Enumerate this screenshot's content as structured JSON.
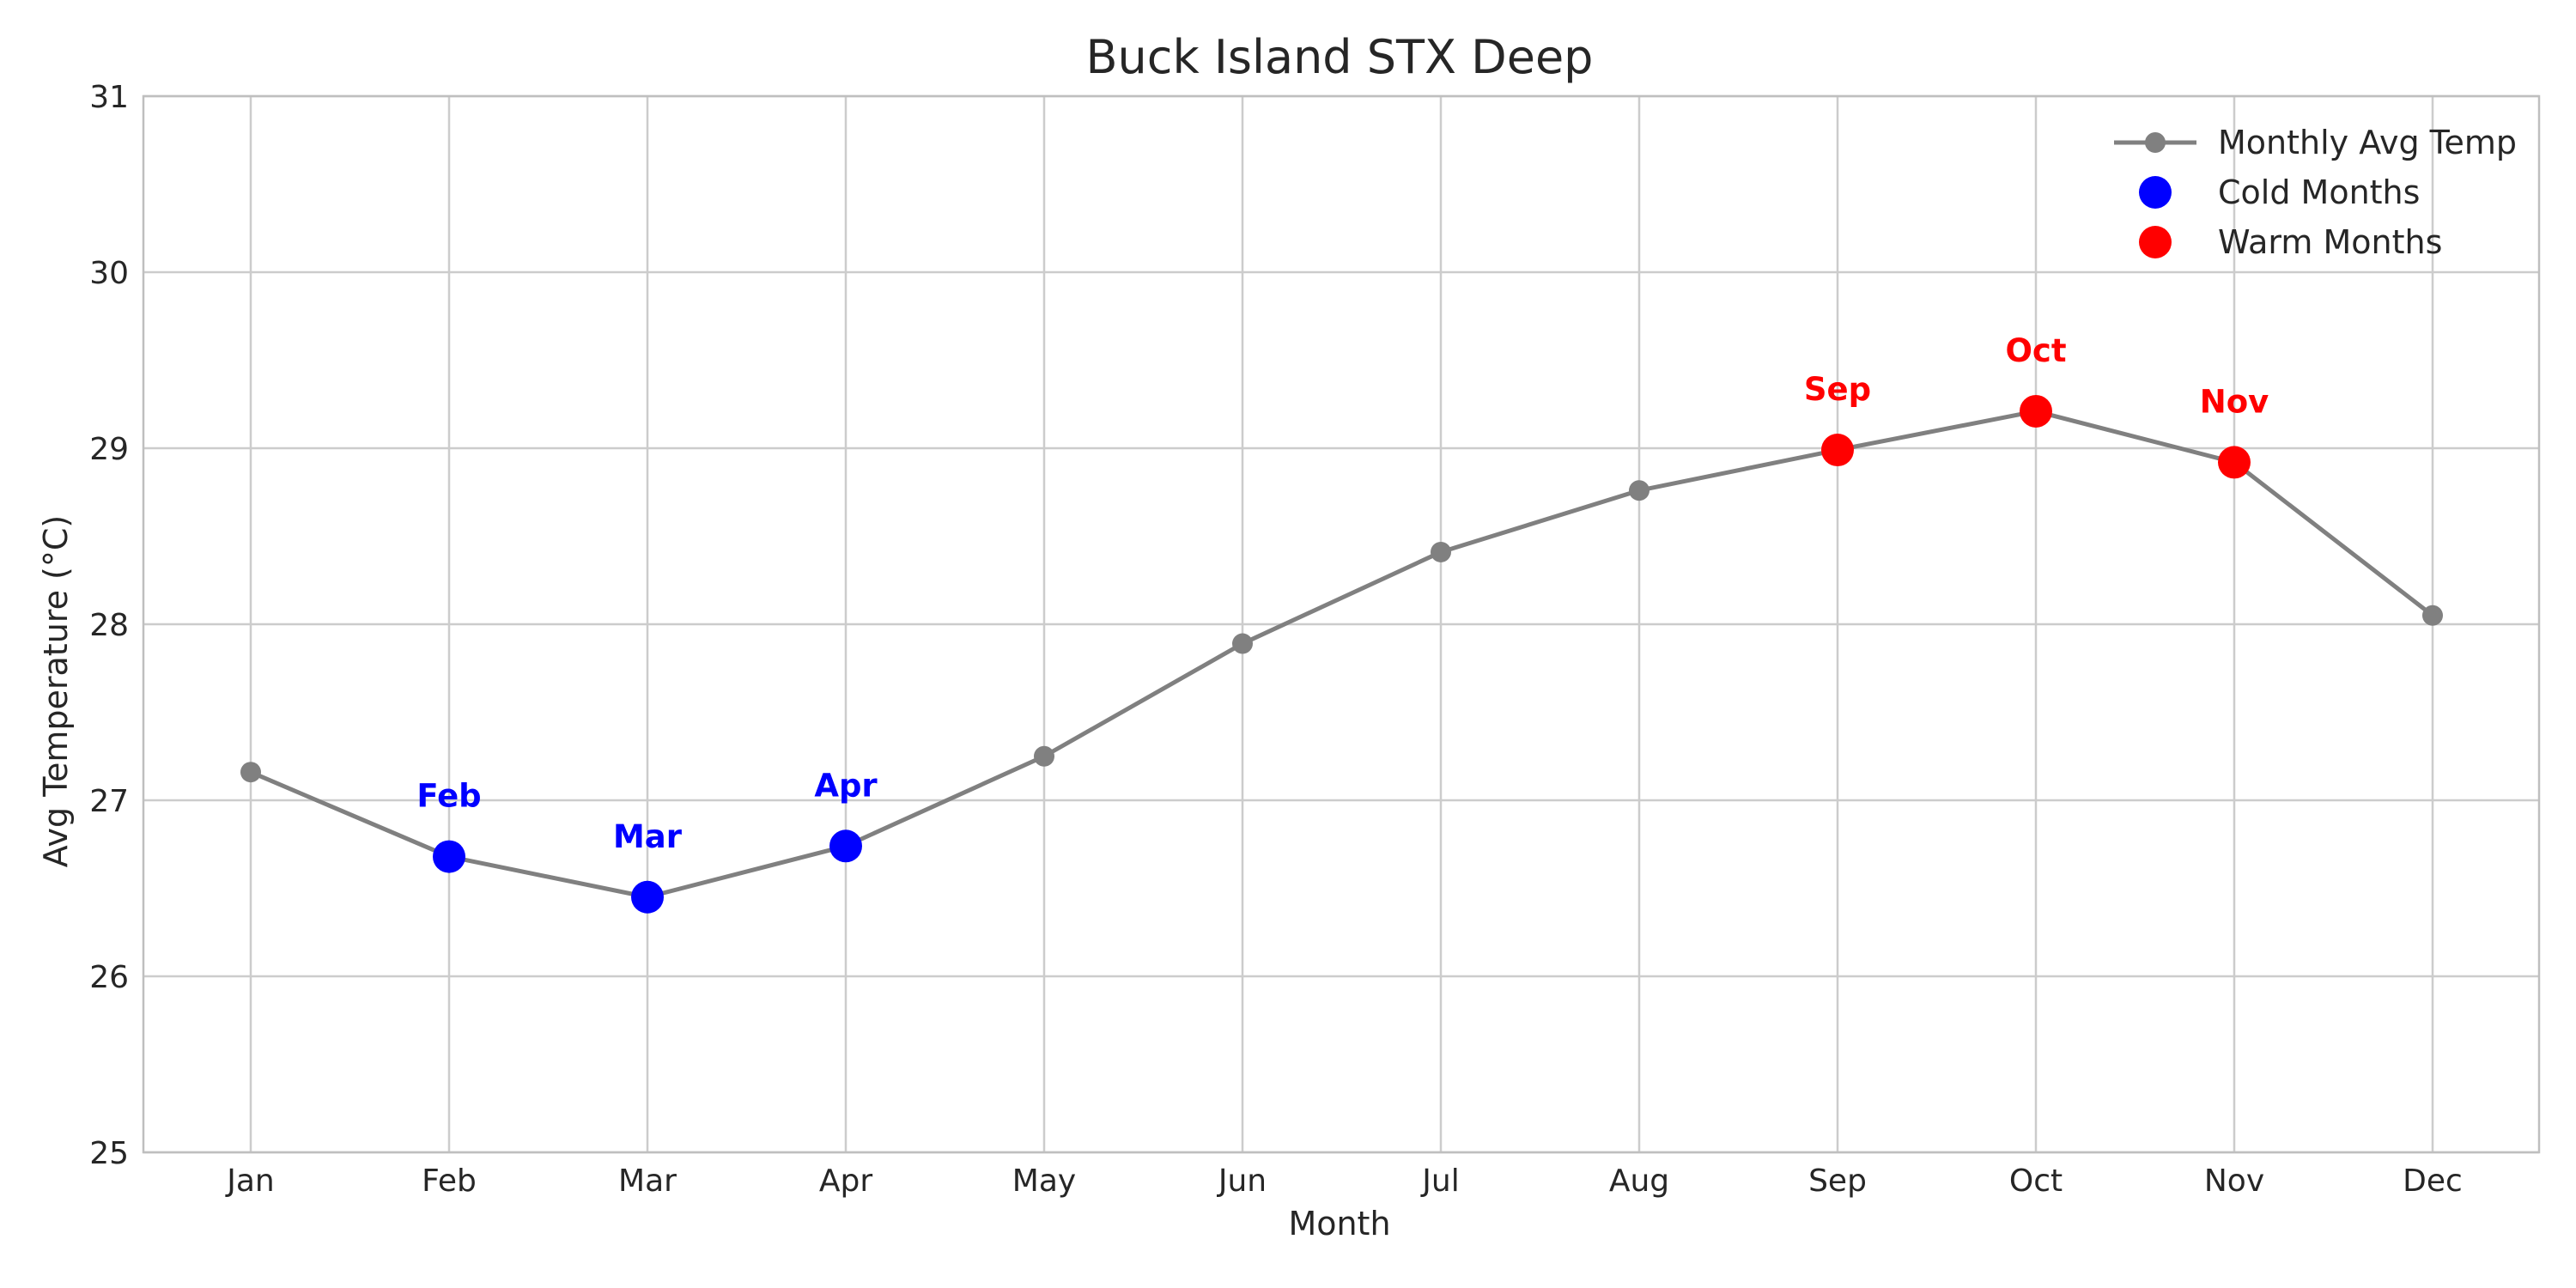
{
  "chart_data": {
    "type": "line",
    "title": "Buck Island STX Deep",
    "xlabel": "Month",
    "ylabel": "Avg Temperature (°C)",
    "ylim": [
      25,
      31
    ],
    "y_ticks": [
      "25",
      "26",
      "27",
      "28",
      "29",
      "30",
      "31"
    ],
    "categories": [
      "Jan",
      "Feb",
      "Mar",
      "Apr",
      "May",
      "Jun",
      "Jul",
      "Aug",
      "Sep",
      "Oct",
      "Nov",
      "Dec"
    ],
    "grid": true,
    "legend_position": "top-right",
    "series": [
      {
        "name": "Monthly Avg Temp",
        "color": "#808080",
        "values": [
          27.16,
          26.68,
          26.45,
          26.74,
          27.25,
          27.89,
          28.41,
          28.76,
          28.99,
          29.21,
          28.92,
          28.05
        ]
      }
    ],
    "highlights": [
      {
        "name": "Cold Months",
        "color": "#0000ff",
        "points": [
          {
            "month": "Feb",
            "value": 26.68
          },
          {
            "month": "Mar",
            "value": 26.45
          },
          {
            "month": "Apr",
            "value": 26.74
          }
        ]
      },
      {
        "name": "Warm Months",
        "color": "#ff0000",
        "points": [
          {
            "month": "Sep",
            "value": 28.99
          },
          {
            "month": "Oct",
            "value": 29.21
          },
          {
            "month": "Nov",
            "value": 28.92
          }
        ]
      }
    ]
  }
}
